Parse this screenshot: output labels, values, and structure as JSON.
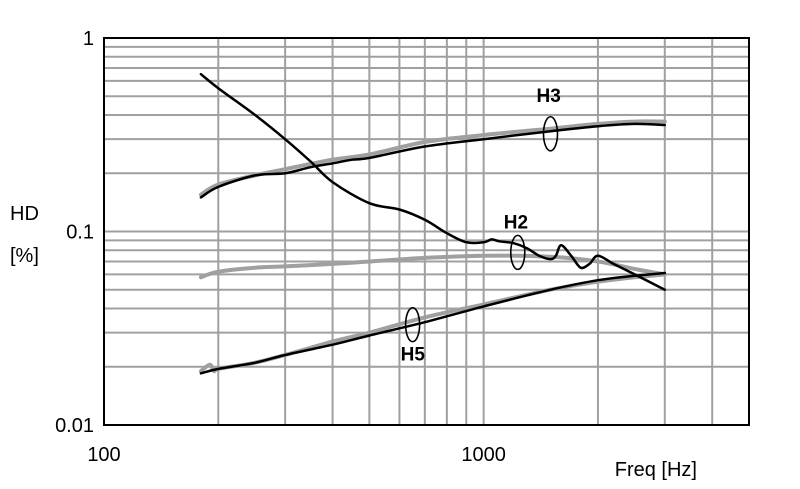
{
  "chart_data": {
    "type": "line",
    "xlabel": "Freq [Hz]",
    "ylabel_lines": [
      "HD",
      "[%]"
    ],
    "x_scale": "log",
    "y_scale": "log",
    "xlim": [
      100,
      5000
    ],
    "ylim": [
      0.01,
      1
    ],
    "x_tick_labels": [
      {
        "value": 100,
        "label": "100"
      },
      {
        "value": 1000,
        "label": "1000"
      }
    ],
    "y_tick_labels": [
      {
        "value": 1,
        "label": "1"
      },
      {
        "value": 0.1,
        "label": "0.1"
      },
      {
        "value": 0.01,
        "label": "0.01"
      }
    ],
    "grid": true,
    "colors": {
      "black": "#000000",
      "gray": "#a0a0a0",
      "grid": "#a0a0a0"
    },
    "annotations": [
      {
        "text": "H3",
        "x": 1500,
        "y": 0.32
      },
      {
        "text": "H2",
        "x": 1230,
        "y": 0.078
      },
      {
        "text": "H5",
        "x": 650,
        "y": 0.033
      }
    ],
    "series": [
      {
        "color": "gray",
        "width": 4,
        "x": [
          180,
          200,
          250,
          300,
          400,
          500,
          700,
          1000,
          1500,
          2000,
          2500,
          3000
        ],
        "y": [
          0.155,
          0.175,
          0.195,
          0.21,
          0.235,
          0.25,
          0.29,
          0.315,
          0.34,
          0.36,
          0.37,
          0.37
        ]
      },
      {
        "color": "black",
        "width": 2.5,
        "x": [
          180,
          200,
          250,
          300,
          350,
          400,
          450,
          500,
          700,
          1000,
          1500,
          2000,
          2500,
          3000
        ],
        "y": [
          0.15,
          0.17,
          0.195,
          0.2,
          0.215,
          0.225,
          0.235,
          0.24,
          0.275,
          0.3,
          0.33,
          0.35,
          0.36,
          0.355
        ]
      },
      {
        "color": "black",
        "width": 2.5,
        "x": [
          180,
          200,
          250,
          300,
          350,
          400,
          500,
          600,
          700,
          800,
          900,
          1000,
          1050,
          1100,
          1200,
          1300,
          1400,
          1500,
          1550,
          1600,
          1700,
          1800,
          1900,
          2000,
          2200,
          2500,
          3000
        ],
        "y": [
          0.65,
          0.55,
          0.4,
          0.3,
          0.23,
          0.18,
          0.14,
          0.13,
          0.115,
          0.098,
          0.088,
          0.088,
          0.091,
          0.089,
          0.087,
          0.082,
          0.075,
          0.072,
          0.075,
          0.085,
          0.075,
          0.065,
          0.068,
          0.075,
          0.068,
          0.06,
          0.05
        ]
      },
      {
        "color": "gray",
        "width": 4,
        "x": [
          180,
          200,
          250,
          300,
          400,
          500,
          700,
          1000,
          1500,
          2000,
          2500,
          3000
        ],
        "y": [
          0.058,
          0.062,
          0.065,
          0.066,
          0.068,
          0.07,
          0.073,
          0.075,
          0.074,
          0.07,
          0.064,
          0.06
        ]
      },
      {
        "color": "gray",
        "width": 4,
        "x": [
          180,
          190,
          195,
          200,
          250,
          300,
          400,
          500,
          700,
          1000,
          1500,
          2000,
          2500,
          3000
        ],
        "y": [
          0.019,
          0.0205,
          0.019,
          0.0195,
          0.021,
          0.023,
          0.027,
          0.03,
          0.036,
          0.042,
          0.05,
          0.055,
          0.058,
          0.06
        ]
      },
      {
        "color": "black",
        "width": 2.5,
        "x": [
          180,
          200,
          250,
          300,
          400,
          500,
          700,
          1000,
          1500,
          2000,
          2500,
          3000
        ],
        "y": [
          0.0185,
          0.0195,
          0.021,
          0.023,
          0.026,
          0.029,
          0.034,
          0.041,
          0.05,
          0.056,
          0.059,
          0.061
        ]
      }
    ]
  }
}
